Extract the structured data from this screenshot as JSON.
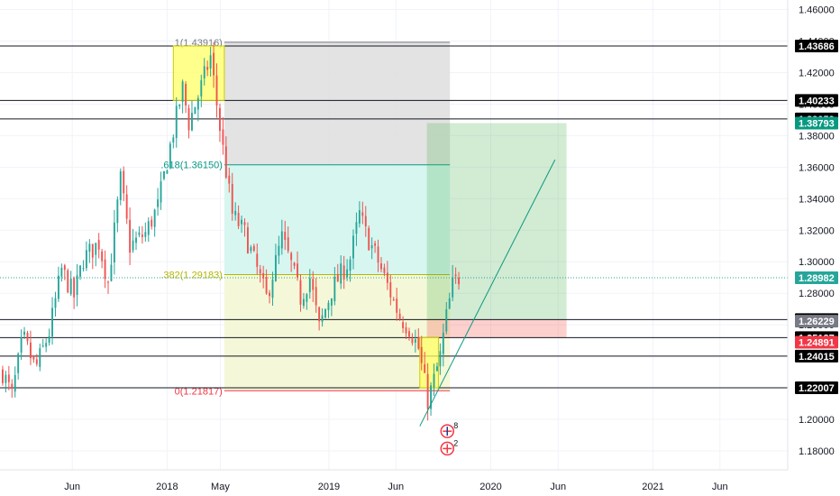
{
  "chart_data": {
    "type": "candlestick",
    "x_axis": {
      "tick_labels": [
        "Jun",
        "2018",
        "May",
        "2019",
        "Jun",
        "2020",
        "Jun",
        "2021",
        "Jun"
      ],
      "tick_dates": [
        "2017-06-01",
        "2018-01-01",
        "2018-05-01",
        "2019-01-01",
        "2019-06-01",
        "2020-01-01",
        "2020-06-01",
        "2021-01-01",
        "2021-06-01"
      ],
      "range": [
        "2016-12-20",
        "2021-11-01"
      ]
    },
    "y_axis": {
      "tick_labels": [
        "1.18000",
        "1.20000",
        "1.22000",
        "1.24000",
        "1.26000",
        "1.28000",
        "1.30000",
        "1.32000",
        "1.34000",
        "1.36000",
        "1.38000",
        "1.40000",
        "1.42000",
        "1.44000",
        "1.46000"
      ],
      "range": [
        1.168,
        1.466
      ],
      "side": "right"
    },
    "colors": {
      "up": "#26a69a",
      "down": "#ef5350"
    },
    "candles": [],
    "horizontal_levels": [
      {
        "price": 1.43686,
        "label": "1.43686",
        "tag_color": "#000000",
        "text_color": "#ffffff"
      },
      {
        "price": 1.40233,
        "label": "1.40233",
        "tag_color": "#000000",
        "text_color": "#ffffff"
      },
      {
        "price": 1.39059,
        "label": "1.39059",
        "tag_color": "#000000",
        "text_color": "#ffffff"
      },
      {
        "price": 1.26329,
        "label": "1.26329",
        "tag_color": "#000000",
        "text_color": "#ffffff"
      },
      {
        "price": 1.25187,
        "label": "1.25187",
        "tag_color": "#000000",
        "text_color": "#ffffff"
      },
      {
        "price": 1.24015,
        "label": "1.24015",
        "tag_color": "#000000",
        "text_color": "#ffffff"
      },
      {
        "price": 1.22007,
        "label": "1.22007",
        "tag_color": "#000000",
        "text_color": "#ffffff"
      }
    ],
    "price_tags": [
      {
        "price": 1.38793,
        "label": "1.38793",
        "color": "#089981"
      },
      {
        "price": 1.28982,
        "label": "1.28982",
        "color": "#26a69a"
      },
      {
        "price": 1.26229,
        "label": "1.26229",
        "color": "#787b86"
      },
      {
        "price": 1.24891,
        "label": "1.24891",
        "color": "#f23645"
      }
    ],
    "fibonacci": {
      "start_date": "2018-05-10",
      "end_date": "2019-10-01",
      "levels": [
        {
          "ratio_label": "1",
          "price": 1.43916,
          "label": "1(1.43916)",
          "color": "#787b86",
          "fill": "#e0e0e0"
        },
        {
          "ratio_label": "0.618",
          "price": 1.3615,
          "label": ".618(1.36150)",
          "color": "#089981",
          "fill": "#d3f5ee"
        },
        {
          "ratio_label": "0.382",
          "price": 1.29183,
          "label": ".382(1.29183)",
          "color": "#b5b500",
          "fill": "#f3f7d4"
        },
        {
          "ratio_label": "0",
          "price": 1.21817,
          "label": "0(1.21817)",
          "color": "#f23645"
        }
      ]
    },
    "position": {
      "start_date": "2019-08-10",
      "end_date": "2020-06-20",
      "entry": 1.26329,
      "target": 1.38793,
      "stop": 1.25187
    },
    "zones": [
      {
        "start_date": "2018-01-15",
        "end_date": "2018-05-10",
        "top": 1.43686,
        "bottom": 1.40233,
        "fill": "#ffff66",
        "stroke": "#cccc00"
      },
      {
        "start_date": "2019-07-25",
        "end_date": "2019-09-05",
        "top": 1.25187,
        "bottom": 1.22007,
        "fill": "#ffff66",
        "stroke": "#cccc00"
      }
    ],
    "trendline": {
      "from": {
        "date": "2019-07-25",
        "price": 1.19571
      },
      "to": {
        "date": "2020-05-25",
        "price": 1.3647
      },
      "color": "#089981"
    },
    "event_markers": [
      {
        "date": "2019-09-25",
        "price": 1.1925,
        "count": "8"
      },
      {
        "date": "2019-09-25",
        "price": 1.1815,
        "count": "2"
      }
    ]
  }
}
